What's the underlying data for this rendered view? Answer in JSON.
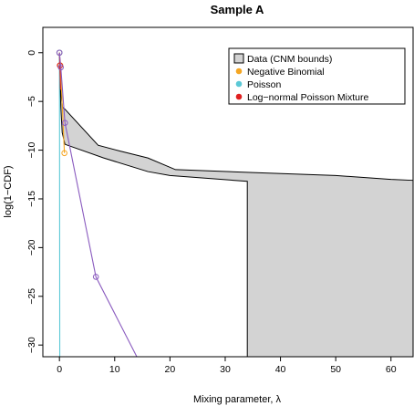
{
  "chart_data": {
    "type": "line",
    "title": "Sample A",
    "xlabel": "Mixing parameter, λ",
    "ylabel": "log(1−CDF)",
    "xlim": [
      -3,
      64
    ],
    "ylim": [
      -31.2,
      2.6
    ],
    "x_ticks": [
      0,
      10,
      20,
      30,
      40,
      50,
      60
    ],
    "x_tick_labels": [
      "0",
      "10",
      "20",
      "30",
      "40",
      "50",
      "60"
    ],
    "y_ticks": [
      0,
      -5,
      -10,
      -15,
      -20,
      -25,
      -30
    ],
    "y_tick_labels": [
      "0",
      "−5",
      "−10",
      "−15",
      "−20",
      "−25",
      "−30"
    ],
    "grid": false,
    "legend_position": "top-right",
    "legend": [
      {
        "label": "Data (CNM bounds)",
        "marker": "box",
        "color": "#d3d3d3"
      },
      {
        "label": "Negative Binomial",
        "marker": "dot",
        "color": "#f5a623"
      },
      {
        "label": "Poisson",
        "marker": "dot",
        "color": "#5bc8d6"
      },
      {
        "label": "Log−normal Poisson Mixture",
        "marker": "dot",
        "color": "#e02020"
      }
    ],
    "bounds": {
      "name": "Data (CNM bounds)",
      "upper": [
        [
          0,
          0
        ],
        [
          0.12,
          -2.2
        ],
        [
          0.3,
          -4.2
        ],
        [
          0.55,
          -5.6
        ],
        [
          1,
          -5.8
        ],
        [
          7,
          -9.5
        ],
        [
          11,
          -10.1
        ],
        [
          16,
          -10.8
        ],
        [
          21,
          -12.0
        ],
        [
          35,
          -12.3
        ],
        [
          50,
          -12.6
        ],
        [
          60,
          -13.0
        ],
        [
          64,
          -13.1
        ]
      ],
      "lower": [
        [
          64,
          -31.2
        ],
        [
          34,
          -31.2
        ],
        [
          34,
          -13.2
        ],
        [
          20,
          -12.6
        ],
        [
          16,
          -12.2
        ],
        [
          8,
          -10.8
        ],
        [
          1,
          -9.4
        ],
        [
          0.5,
          -8.2
        ],
        [
          0.25,
          -5.6
        ],
        [
          0.08,
          -2.5
        ],
        [
          0,
          0
        ]
      ]
    },
    "series": [
      {
        "name": "Negative Binomial",
        "color": "#f5a623",
        "x": [
          0,
          0.15,
          0.35,
          0.6,
          0.9
        ],
        "y": [
          0,
          -1.3,
          -3.5,
          -6.5,
          -10.3
        ],
        "markers": [
          [
            0,
            0
          ],
          [
            0.15,
            -1.3
          ],
          [
            0.9,
            -10.3
          ]
        ]
      },
      {
        "name": "Poisson",
        "color": "#5bc8d6",
        "x": [
          0,
          0.02,
          0.04,
          0.06
        ],
        "y": [
          0,
          -8,
          -18,
          -31.2
        ],
        "markers": [
          [
            0,
            0
          ]
        ]
      },
      {
        "name": "Log−normal Poisson Mixture",
        "color": "#e02020",
        "x": [
          0,
          0.08,
          0.2
        ],
        "y": [
          0,
          -1.3,
          -3.8
        ],
        "markers": [
          [
            0.08,
            -1.3
          ]
        ]
      },
      {
        "name": "",
        "color": "#8a5bbf",
        "x": [
          0,
          0.25,
          1.0,
          6.6,
          14
        ],
        "y": [
          0,
          -1.5,
          -7.2,
          -23.0,
          -31.2
        ],
        "markers": [
          [
            0,
            0
          ],
          [
            0.25,
            -1.5
          ],
          [
            1.0,
            -7.2
          ],
          [
            6.6,
            -23.0
          ]
        ]
      }
    ]
  }
}
